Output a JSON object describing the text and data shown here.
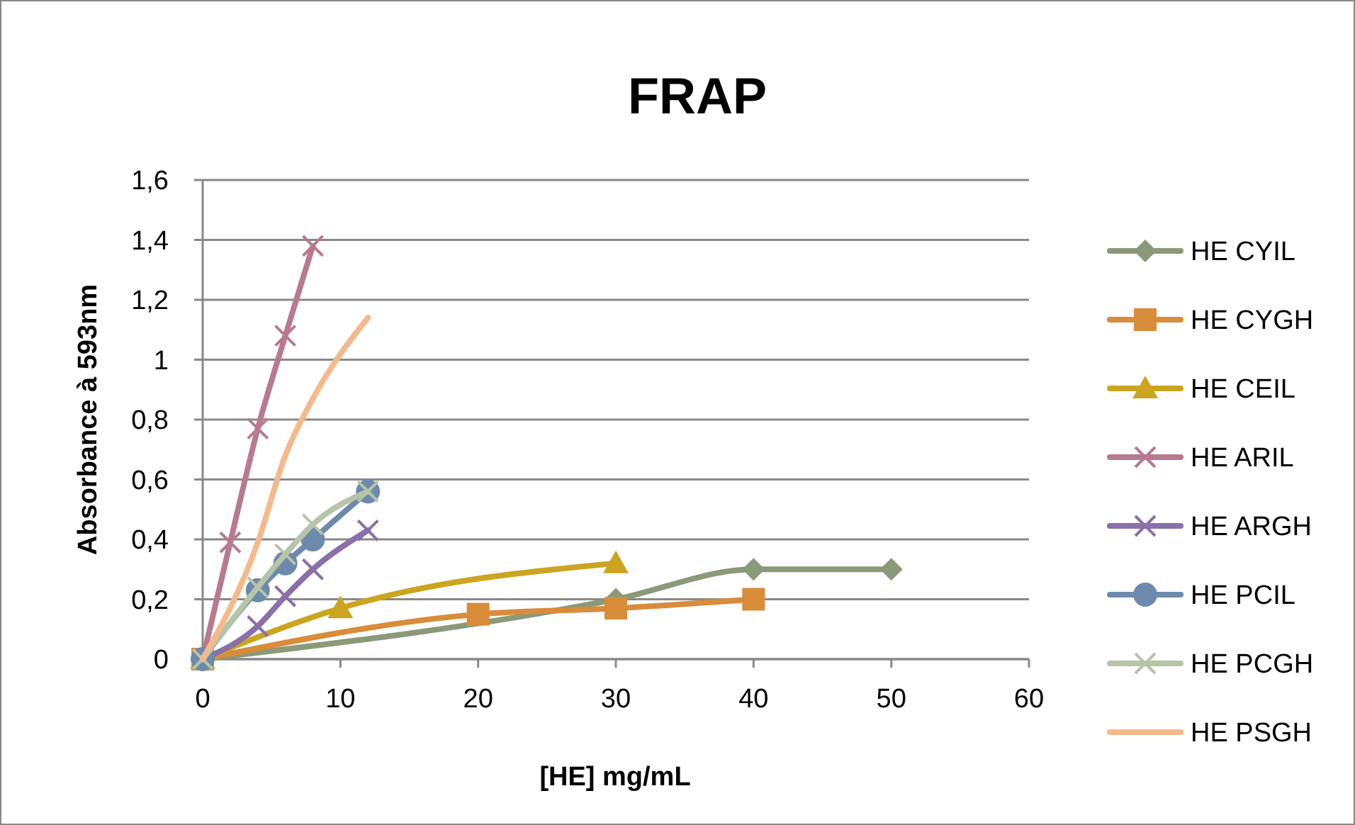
{
  "chart_data": {
    "type": "line",
    "title": "FRAP",
    "xlabel": "[HE] mg/mL",
    "ylabel": "Absorbance à 593nm",
    "xlim": [
      0,
      60
    ],
    "xticks": [
      0,
      10,
      20,
      30,
      40,
      50,
      60
    ],
    "ylim": [
      0,
      1.6
    ],
    "yticks": [
      0,
      {
        "value": 0.2,
        "label": "0,2"
      },
      {
        "value": 0.4,
        "label": "0,4"
      },
      {
        "value": 0.6,
        "label": "0,6"
      },
      {
        "value": 0.8,
        "label": "0,8"
      },
      1,
      {
        "value": 1.2,
        "label": "1,2"
      },
      {
        "value": 1.4,
        "label": "1,4"
      },
      {
        "value": 1.6,
        "label": "1,6"
      }
    ],
    "grid": "y",
    "legend": "right",
    "series": [
      {
        "name": "HE CYIL",
        "color": "#8a9a78",
        "marker": "diamond",
        "x": [
          0,
          30,
          40,
          50
        ],
        "values": [
          0,
          0.2,
          0.3,
          0.3
        ]
      },
      {
        "name": "HE CYGH",
        "color": "#d98c3a",
        "marker": "square",
        "x": [
          0,
          20,
          30,
          40
        ],
        "values": [
          0,
          0.15,
          0.17,
          0.2
        ]
      },
      {
        "name": "HE CEIL",
        "color": "#cca520",
        "marker": "triangle",
        "x": [
          0,
          10,
          30
        ],
        "values": [
          0,
          0.17,
          0.32
        ]
      },
      {
        "name": "HE ARIL",
        "color": "#b87a8e",
        "marker": "cross",
        "x": [
          0,
          2,
          4,
          6,
          8
        ],
        "values": [
          0,
          0.39,
          0.77,
          1.08,
          1.38
        ]
      },
      {
        "name": "HE ARGH",
        "color": "#8a6fa8",
        "marker": "cross",
        "x": [
          0,
          4,
          6,
          8,
          12
        ],
        "values": [
          0,
          0.11,
          0.21,
          0.3,
          0.43
        ]
      },
      {
        "name": "HE PCIL",
        "color": "#6d8aad",
        "marker": "circle",
        "x": [
          0,
          4,
          6,
          8,
          12
        ],
        "values": [
          0,
          0.23,
          0.32,
          0.4,
          0.56
        ]
      },
      {
        "name": "HE PCGH",
        "color": "#b6c4a8",
        "marker": "cross",
        "x": [
          0,
          4,
          6,
          8,
          12
        ],
        "values": [
          0,
          0.24,
          0.35,
          0.45,
          0.56
        ]
      },
      {
        "name": "HE PSGH",
        "color": "#f5b98a",
        "marker": "none",
        "x": [
          0,
          4,
          6,
          8,
          12
        ],
        "values": [
          0,
          0.39,
          0.68,
          0.87,
          1.14
        ]
      }
    ]
  }
}
